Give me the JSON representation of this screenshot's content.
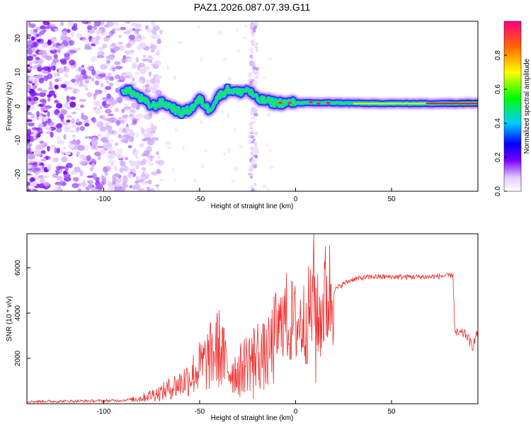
{
  "title": "PAZ1.2026.087.07.39.G11",
  "chart_data": [
    {
      "type": "heatmap",
      "xlabel": "Height of straight line (km)",
      "ylabel": "Frequency (Hz)",
      "xlim": [
        -140,
        95
      ],
      "ylim": [
        -25,
        25
      ],
      "xticks": [
        -100,
        -50,
        0,
        50
      ],
      "yticks": [
        -20,
        -10,
        0,
        10,
        20
      ],
      "ridge": [
        {
          "x": -90,
          "freq": 5
        },
        {
          "x": -85,
          "freq": 4
        },
        {
          "x": -80,
          "freq": 2
        },
        {
          "x": -75,
          "freq": 0
        },
        {
          "x": -70,
          "freq": 1
        },
        {
          "x": -65,
          "freq": 0
        },
        {
          "x": -60,
          "freq": -2
        },
        {
          "x": -55,
          "freq": -1
        },
        {
          "x": -50,
          "freq": 2
        },
        {
          "x": -45,
          "freq": -1
        },
        {
          "x": -40,
          "freq": 3
        },
        {
          "x": -35,
          "freq": 5
        },
        {
          "x": -30,
          "freq": 4
        },
        {
          "x": -25,
          "freq": 5
        },
        {
          "x": -20,
          "freq": 2
        },
        {
          "x": -10,
          "freq": 1
        },
        {
          "x": 0,
          "freq": 1
        },
        {
          "x": 10,
          "freq": 1
        },
        {
          "x": 20,
          "freq": 1
        },
        {
          "x": 40,
          "freq": 0.8
        },
        {
          "x": 60,
          "freq": 0.8
        },
        {
          "x": 80,
          "freq": 0.8
        },
        {
          "x": 95,
          "freq": 1
        }
      ],
      "colorbar": {
        "label": "Normalized spectral amplitude",
        "ticks": [
          "0.0",
          "0.2",
          "0.4",
          "0.6",
          "0.8"
        ],
        "range": [
          0,
          1
        ]
      }
    },
    {
      "type": "line",
      "xlabel": "Height of straight line (km)",
      "ylabel": "SNR (10 * v/v)",
      "xlim": [
        -140,
        95
      ],
      "ylim": [
        0,
        7500
      ],
      "xticks": [
        -100,
        -50,
        0,
        50
      ],
      "yticks": [
        2000,
        4000,
        6000
      ],
      "color": "#ee3030",
      "series": [
        {
          "x": -140,
          "y": 100
        },
        {
          "x": -120,
          "y": 110
        },
        {
          "x": -100,
          "y": 130
        },
        {
          "x": -90,
          "y": 150
        },
        {
          "x": -80,
          "y": 250
        },
        {
          "x": -75,
          "y": 400
        },
        {
          "x": -70,
          "y": 500
        },
        {
          "x": -65,
          "y": 700
        },
        {
          "x": -60,
          "y": 900
        },
        {
          "x": -55,
          "y": 1200
        },
        {
          "x": -50,
          "y": 1600
        },
        {
          "x": -45,
          "y": 2000
        },
        {
          "x": -40,
          "y": 2500
        },
        {
          "x": -35,
          "y": 1500
        },
        {
          "x": -30,
          "y": 1400
        },
        {
          "x": -25,
          "y": 1900
        },
        {
          "x": -20,
          "y": 2200
        },
        {
          "x": -15,
          "y": 2000
        },
        {
          "x": -10,
          "y": 3000
        },
        {
          "x": -5,
          "y": 3800
        },
        {
          "x": 0,
          "y": 3500
        },
        {
          "x": 5,
          "y": 3600
        },
        {
          "x": 8,
          "y": 4200
        },
        {
          "x": 10,
          "y": 4500
        },
        {
          "x": 12,
          "y": 3500
        },
        {
          "x": 15,
          "y": 4600
        },
        {
          "x": 20,
          "y": 5000
        },
        {
          "x": 25,
          "y": 5300
        },
        {
          "x": 30,
          "y": 5500
        },
        {
          "x": 40,
          "y": 5600
        },
        {
          "x": 50,
          "y": 5600
        },
        {
          "x": 60,
          "y": 5600
        },
        {
          "x": 70,
          "y": 5600
        },
        {
          "x": 80,
          "y": 5650
        },
        {
          "x": 82,
          "y": 5700
        },
        {
          "x": 83,
          "y": 3100
        },
        {
          "x": 88,
          "y": 3100
        },
        {
          "x": 90,
          "y": 2900
        },
        {
          "x": 92,
          "y": 2500
        },
        {
          "x": 95,
          "y": 3200
        }
      ],
      "spikes": [
        {
          "x": 9.5,
          "y": 7500
        },
        {
          "x": 10.5,
          "y": 900
        },
        {
          "x": -38,
          "y": 3400
        },
        {
          "x": -29,
          "y": 300
        },
        {
          "x": -22,
          "y": 200
        },
        {
          "x": -7,
          "y": 4700
        },
        {
          "x": -3,
          "y": 2000
        }
      ]
    }
  ]
}
